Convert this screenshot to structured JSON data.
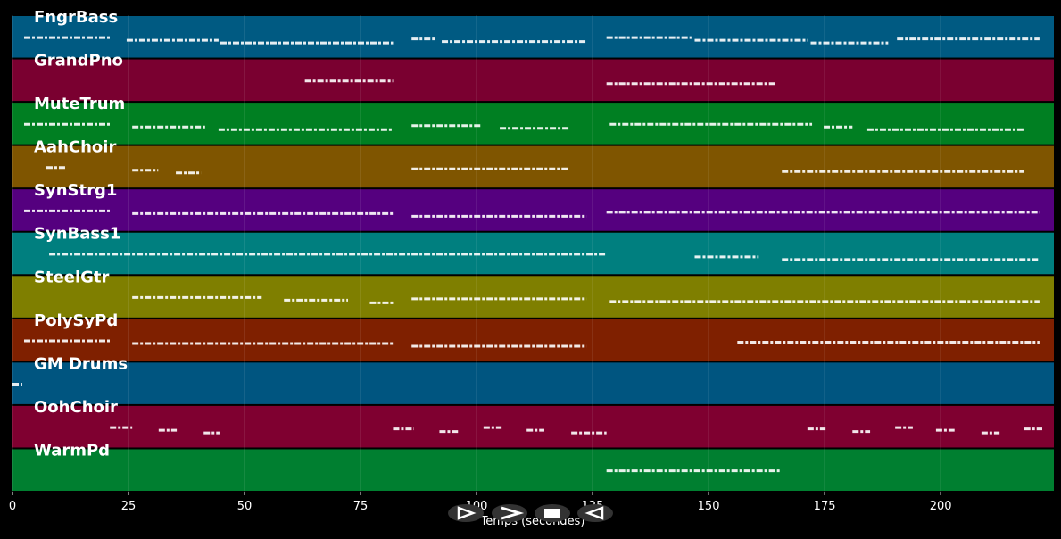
{
  "chart_data": {
    "type": "pianoroll",
    "x_label": "Temps (secondes)",
    "xlim": [
      0,
      224.4
    ],
    "xticks": [
      0,
      25,
      50,
      75,
      100,
      125,
      150,
      175,
      200
    ],
    "grid": true,
    "tracks": [
      {
        "name": "FngrBass",
        "color": "#005a82",
        "notes": [
          [
            2.5,
            21
          ],
          [
            24.6,
            44.4
          ],
          [
            44.8,
            82
          ],
          [
            86,
            91
          ],
          [
            92.5,
            123.7
          ],
          [
            128,
            146.3
          ],
          [
            147,
            171.3
          ],
          [
            172,
            188.7
          ],
          [
            190.6,
            221.3
          ]
        ]
      },
      {
        "name": "GrandPno",
        "color": "#7a0030",
        "notes": [
          [
            63,
            82
          ],
          [
            128,
            164.6
          ]
        ]
      },
      {
        "name": "MuteTrum",
        "color": "#007f22",
        "notes": [
          [
            2.5,
            21
          ],
          [
            25.8,
            41.5
          ],
          [
            44.4,
            82
          ],
          [
            86,
            101
          ],
          [
            105,
            120
          ],
          [
            128.7,
            172.3
          ],
          [
            174.8,
            181
          ],
          [
            184.2,
            218
          ]
        ]
      },
      {
        "name": "AahChoir",
        "color": "#7f5500",
        "notes": [
          [
            7.3,
            11.7
          ],
          [
            25.8,
            31.4
          ],
          [
            35.2,
            40.6
          ],
          [
            86,
            120
          ],
          [
            165.8,
            218
          ]
        ]
      },
      {
        "name": "SynStrg1",
        "color": "#55007f",
        "notes": [
          [
            2.5,
            21
          ],
          [
            25.8,
            82
          ],
          [
            86,
            123.7
          ],
          [
            128,
            221.3
          ]
        ]
      },
      {
        "name": "SynBass1",
        "color": "#007f7f",
        "notes": [
          [
            7.9,
            128
          ],
          [
            147,
            160.8
          ],
          [
            165.8,
            221.3
          ]
        ]
      },
      {
        "name": "SteelGtr",
        "color": "#7f7f00",
        "notes": [
          [
            25.8,
            53.7
          ],
          [
            58.5,
            72.3
          ],
          [
            77,
            82
          ],
          [
            86,
            123.7
          ],
          [
            128.7,
            221.3
          ]
        ]
      },
      {
        "name": "PolySyPd",
        "color": "#7f2000",
        "notes": [
          [
            2.5,
            21
          ],
          [
            25.8,
            82
          ],
          [
            86,
            123.7
          ],
          [
            156.2,
            221.3
          ]
        ]
      },
      {
        "name": "GM Drums",
        "color": "#005580",
        "notes": [
          [
            0,
            2.1
          ]
        ]
      },
      {
        "name": "OohChoir",
        "color": "#7f0030",
        "notes": [
          [
            21,
            25.8
          ],
          [
            31.5,
            35.4
          ],
          [
            41.2,
            44.6
          ],
          [
            82,
            86.5
          ],
          [
            92,
            96
          ],
          [
            101.5,
            105.4
          ],
          [
            110.8,
            114.6
          ],
          [
            120.4,
            128
          ],
          [
            171.3,
            175.2
          ],
          [
            181,
            184.8
          ],
          [
            190.2,
            194
          ],
          [
            199,
            203
          ],
          [
            208.8,
            212.7
          ],
          [
            218,
            221.9
          ]
        ]
      },
      {
        "name": "WarmPd",
        "color": "#007f30",
        "notes": [
          [
            128,
            165.6
          ]
        ]
      }
    ]
  }
}
